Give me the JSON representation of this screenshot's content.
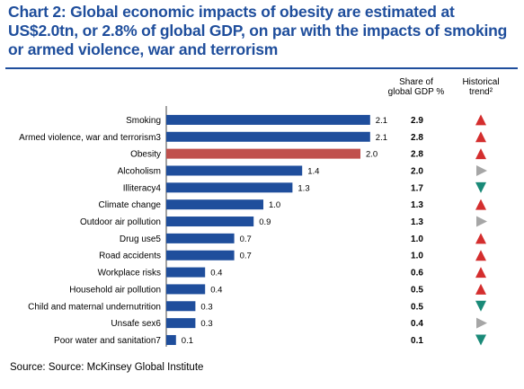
{
  "title": "Chart 2: Global economic impacts of obesity are estimated at US$2.0tn, or 2.8% of global GDP, on par with the impacts of smoking or armed violence, war and terrorism",
  "columns": {
    "share_line1": "Share of",
    "share_line2": "global GDP %",
    "trend_line1": "Historical",
    "trend_line2": "trend²"
  },
  "source": "Source: Source: McKinsey Global Institute",
  "colors": {
    "title": "#1f4e9c",
    "bar": "#1f4e9c",
    "highlight_bar": "#c0504d",
    "trend_up": "#d42e2e",
    "trend_flat": "#a6a6a6",
    "trend_down": "#1a8a78"
  },
  "chart_data": {
    "type": "bar",
    "orientation": "horizontal",
    "categories": [
      "Smoking",
      "Armed violence, war and terrorism3",
      "Obesity",
      "Alcoholism",
      "Illiteracy4",
      "Climate change",
      "Outdoor air pollution",
      "Drug use5",
      "Road accidents",
      "Workplace risks",
      "Household air pollution",
      "Child and maternal undernutrition",
      "Unsafe sex6",
      "Poor water and sanitation7"
    ],
    "values": [
      2.1,
      2.1,
      2.0,
      1.4,
      1.3,
      1.0,
      0.9,
      0.7,
      0.7,
      0.4,
      0.4,
      0.3,
      0.3,
      0.1
    ],
    "value_labels": [
      "2.1",
      "2.1",
      "2.0",
      "1.4",
      "1.3",
      "1.0",
      "0.9",
      "0.7",
      "0.7",
      "0.4",
      "0.4",
      "0.3",
      "0.3",
      "0.1"
    ],
    "highlight": "Obesity",
    "share_of_gdp": [
      "2.9",
      "2.8",
      "2.8",
      "2.0",
      "1.7",
      "1.3",
      "1.3",
      "1.0",
      "1.0",
      "0.6",
      "0.5",
      "0.5",
      "0.4",
      "0.1"
    ],
    "historical_trend": [
      "up",
      "up",
      "up",
      "flat",
      "down",
      "up",
      "flat",
      "up",
      "up",
      "up",
      "up",
      "down",
      "flat",
      "down"
    ],
    "xlim": [
      0,
      2.2
    ]
  }
}
